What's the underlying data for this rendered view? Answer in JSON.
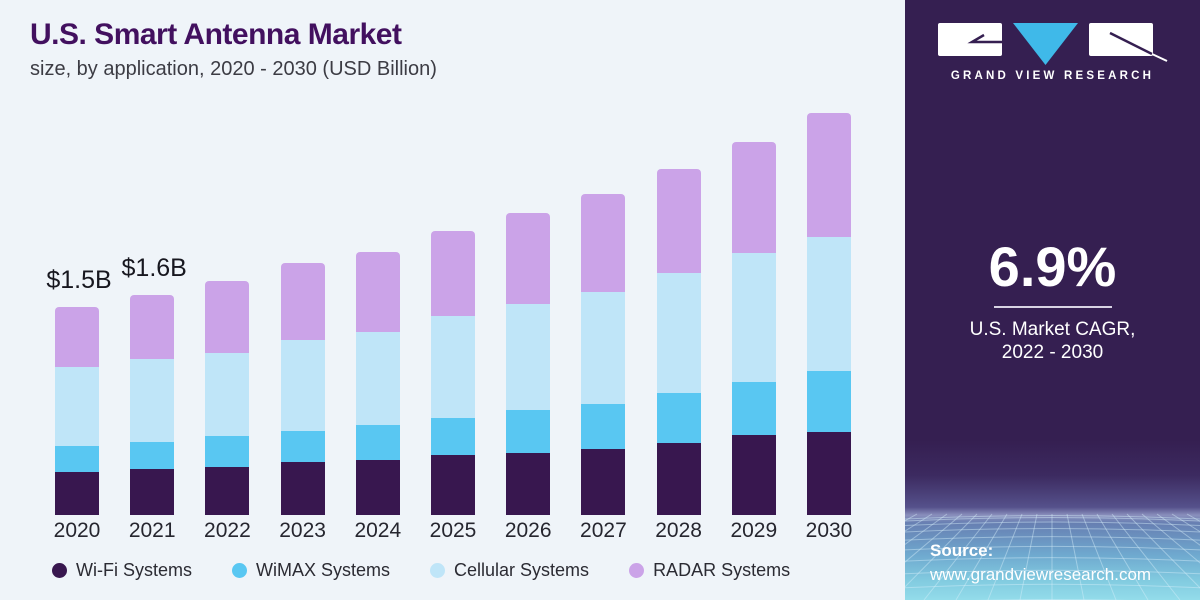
{
  "header": {
    "title": "U.S. Smart Antenna Market",
    "subtitle": "size, by application, 2020 - 2030 (USD Billion)"
  },
  "chart_data": {
    "type": "bar",
    "stacked": true,
    "title": "U.S. Smart Antenna Market size, by application, 2020 - 2030 (USD Billion)",
    "unit": "USD Billion",
    "categories": [
      "2020",
      "2021",
      "2022",
      "2023",
      "2024",
      "2025",
      "2026",
      "2027",
      "2028",
      "2029",
      "2030"
    ],
    "series": [
      {
        "name": "Wi-Fi Systems",
        "color": "#38174f",
        "values": [
          0.31,
          0.33,
          0.35,
          0.38,
          0.4,
          0.43,
          0.45,
          0.48,
          0.52,
          0.58,
          0.6
        ]
      },
      {
        "name": "WiMAX Systems",
        "color": "#59c7f2",
        "values": [
          0.19,
          0.2,
          0.22,
          0.23,
          0.25,
          0.27,
          0.31,
          0.32,
          0.36,
          0.38,
          0.44
        ]
      },
      {
        "name": "Cellular Systems",
        "color": "#bfe5f8",
        "values": [
          0.57,
          0.6,
          0.6,
          0.65,
          0.67,
          0.74,
          0.76,
          0.81,
          0.87,
          0.93,
          0.97
        ]
      },
      {
        "name": "RADAR Systems",
        "color": "#cba3e8",
        "values": [
          0.43,
          0.46,
          0.52,
          0.56,
          0.58,
          0.61,
          0.66,
          0.71,
          0.75,
          0.8,
          0.89
        ]
      }
    ],
    "totals": [
      1.5,
      1.59,
      1.69,
      1.82,
      1.9,
      2.05,
      2.18,
      2.32,
      2.5,
      2.69,
      2.9
    ],
    "annotations": [
      {
        "category_index": 0,
        "label": "$1.5B"
      },
      {
        "category_index": 1,
        "label": "$1.6B"
      }
    ],
    "ylim": [
      0,
      3.0
    ],
    "gridlines": false,
    "axis_lines": false,
    "legend_position": "bottom"
  },
  "sidebar": {
    "brand": "GRAND VIEW RESEARCH",
    "cagr_value": "6.9%",
    "cagr_caption_line1": "U.S. Market CAGR,",
    "cagr_caption_line2": "2022 - 2030",
    "source_label": "Source:",
    "source_url": "www.grandviewresearch.com",
    "bg_color": "#351f51",
    "logo_blue": "#3fb9e9"
  }
}
